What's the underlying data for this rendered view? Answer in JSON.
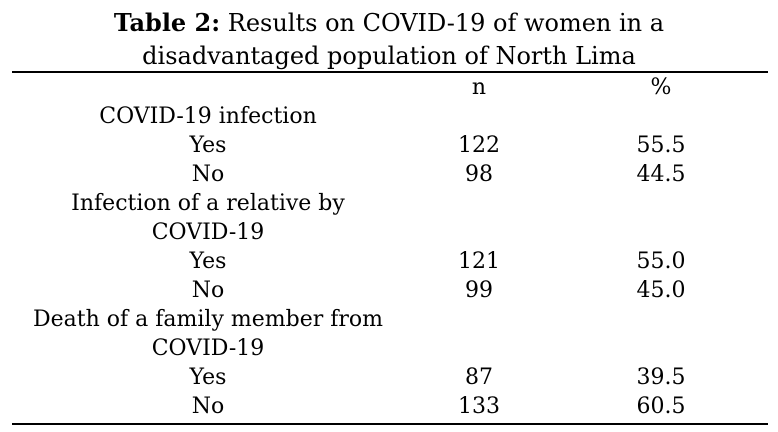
{
  "caption": {
    "label": "Table 2:",
    "line1_rest": " Results on COVID-19 of women in a",
    "line2": "disadvantaged population of North Lima"
  },
  "columns": {
    "n": "n",
    "pct": "%"
  },
  "rows": [
    {
      "kind": "section",
      "label": "COVID-19 infection"
    },
    {
      "kind": "answer",
      "label": "Yes",
      "n": "122",
      "pct": "55.5"
    },
    {
      "kind": "answer",
      "label": "No",
      "n": "98",
      "pct": "44.5"
    },
    {
      "kind": "section",
      "label": "Infection of a relative by"
    },
    {
      "kind": "section",
      "label": "COVID-19"
    },
    {
      "kind": "answer",
      "label": "Yes",
      "n": "121",
      "pct": "55.0"
    },
    {
      "kind": "answer",
      "label": "No",
      "n": "99",
      "pct": "45.0"
    },
    {
      "kind": "section",
      "label": "Death of a family member from"
    },
    {
      "kind": "section",
      "label": "COVID-19"
    },
    {
      "kind": "answer",
      "label": "Yes",
      "n": "87",
      "pct": "39.5"
    },
    {
      "kind": "answer",
      "label": "No",
      "n": "133",
      "pct": "60.5"
    }
  ]
}
